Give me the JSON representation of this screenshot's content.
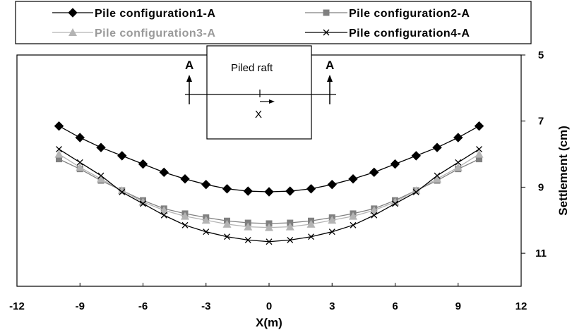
{
  "chart_data": {
    "type": "line",
    "title": "",
    "xlabel": "X(m)",
    "ylabel": "Settlement (cm)",
    "xlim": [
      -12,
      12
    ],
    "ylim": [
      5,
      12
    ],
    "y_inverted": true,
    "y_axis_side": "right",
    "xticks": [
      -12,
      -9,
      -6,
      -3,
      0,
      3,
      6,
      9,
      12
    ],
    "yticks": [
      5,
      7,
      9,
      11
    ],
    "grid": false,
    "legend_position": "top",
    "x": [
      -10,
      -9,
      -8,
      -7,
      -6,
      -5,
      -4,
      -3,
      -2,
      -1,
      0,
      1,
      2,
      3,
      4,
      5,
      6,
      7,
      8,
      9,
      10
    ],
    "series": [
      {
        "name": "Pile configuration1-A",
        "color": "#000000",
        "marker": "diamond",
        "values": [
          7.15,
          7.5,
          7.8,
          8.05,
          8.3,
          8.55,
          8.75,
          8.92,
          9.05,
          9.12,
          9.14,
          9.12,
          9.05,
          8.92,
          8.75,
          8.55,
          8.3,
          8.05,
          7.8,
          7.5,
          7.15
        ]
      },
      {
        "name": "Pile configuration2-A",
        "color": "#808080",
        "marker": "square",
        "values": [
          8.15,
          8.45,
          8.8,
          9.1,
          9.4,
          9.65,
          9.8,
          9.92,
          10.02,
          10.08,
          10.1,
          10.08,
          10.02,
          9.92,
          9.8,
          9.65,
          9.4,
          9.1,
          8.8,
          8.45,
          8.15
        ]
      },
      {
        "name": "Pile configuration3-A",
        "color": "#b4b4b4",
        "marker": "triangle",
        "values": [
          8.0,
          8.4,
          8.75,
          9.1,
          9.45,
          9.7,
          9.88,
          10.0,
          10.12,
          10.2,
          10.22,
          10.2,
          10.12,
          10.0,
          9.88,
          9.7,
          9.45,
          9.1,
          8.75,
          8.4,
          8.0
        ]
      },
      {
        "name": "Pile configuration4-A",
        "color": "#000000",
        "marker": "x",
        "values": [
          7.85,
          8.25,
          8.65,
          9.15,
          9.5,
          9.85,
          10.15,
          10.35,
          10.5,
          10.6,
          10.65,
          10.6,
          10.5,
          10.35,
          10.15,
          9.85,
          9.5,
          9.15,
          8.65,
          8.25,
          7.85
        ]
      }
    ],
    "inset": {
      "box_label": "Piled raft",
      "section_label_left": "A",
      "section_label_right": "A",
      "axis_label": "X"
    }
  }
}
